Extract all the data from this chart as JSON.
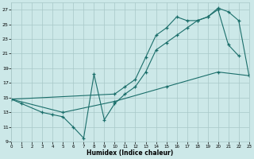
{
  "background_color": "#cce8e8",
  "grid_color": "#a8c8c8",
  "line_color": "#1a6e6a",
  "xlabel": "Humidex (Indice chaleur)",
  "ylim": [
    9,
    28
  ],
  "xlim": [
    0,
    23
  ],
  "yticks": [
    9,
    11,
    13,
    15,
    17,
    19,
    21,
    23,
    25,
    27
  ],
  "xticks": [
    0,
    1,
    2,
    3,
    4,
    5,
    6,
    7,
    8,
    9,
    10,
    11,
    12,
    13,
    14,
    15,
    16,
    17,
    18,
    19,
    20,
    21,
    22,
    23
  ],
  "lines": [
    {
      "x": [
        0,
        1,
        3,
        4,
        5,
        6,
        7,
        8,
        9,
        10,
        11,
        12,
        13,
        14,
        15,
        16,
        17,
        18,
        19,
        20,
        21,
        22
      ],
      "y": [
        14.8,
        14.2,
        13.0,
        12.7,
        12.4,
        11.0,
        9.5,
        18.2,
        12.0,
        14.2,
        15.5,
        16.5,
        18.5,
        21.5,
        22.5,
        23.5,
        24.5,
        25.5,
        26.0,
        27.0,
        22.2,
        20.7
      ]
    },
    {
      "x": [
        0,
        10,
        11,
        12,
        13,
        14,
        15,
        16,
        17,
        18,
        19,
        20,
        21,
        22,
        23
      ],
      "y": [
        14.8,
        15.5,
        16.5,
        17.5,
        20.5,
        23.5,
        24.5,
        26.0,
        25.5,
        25.5,
        26.0,
        27.2,
        26.7,
        25.5,
        18.0
      ]
    },
    {
      "x": [
        0,
        5,
        10,
        15,
        20,
        23
      ],
      "y": [
        14.8,
        13.0,
        14.5,
        16.5,
        18.5,
        18.0
      ]
    }
  ]
}
